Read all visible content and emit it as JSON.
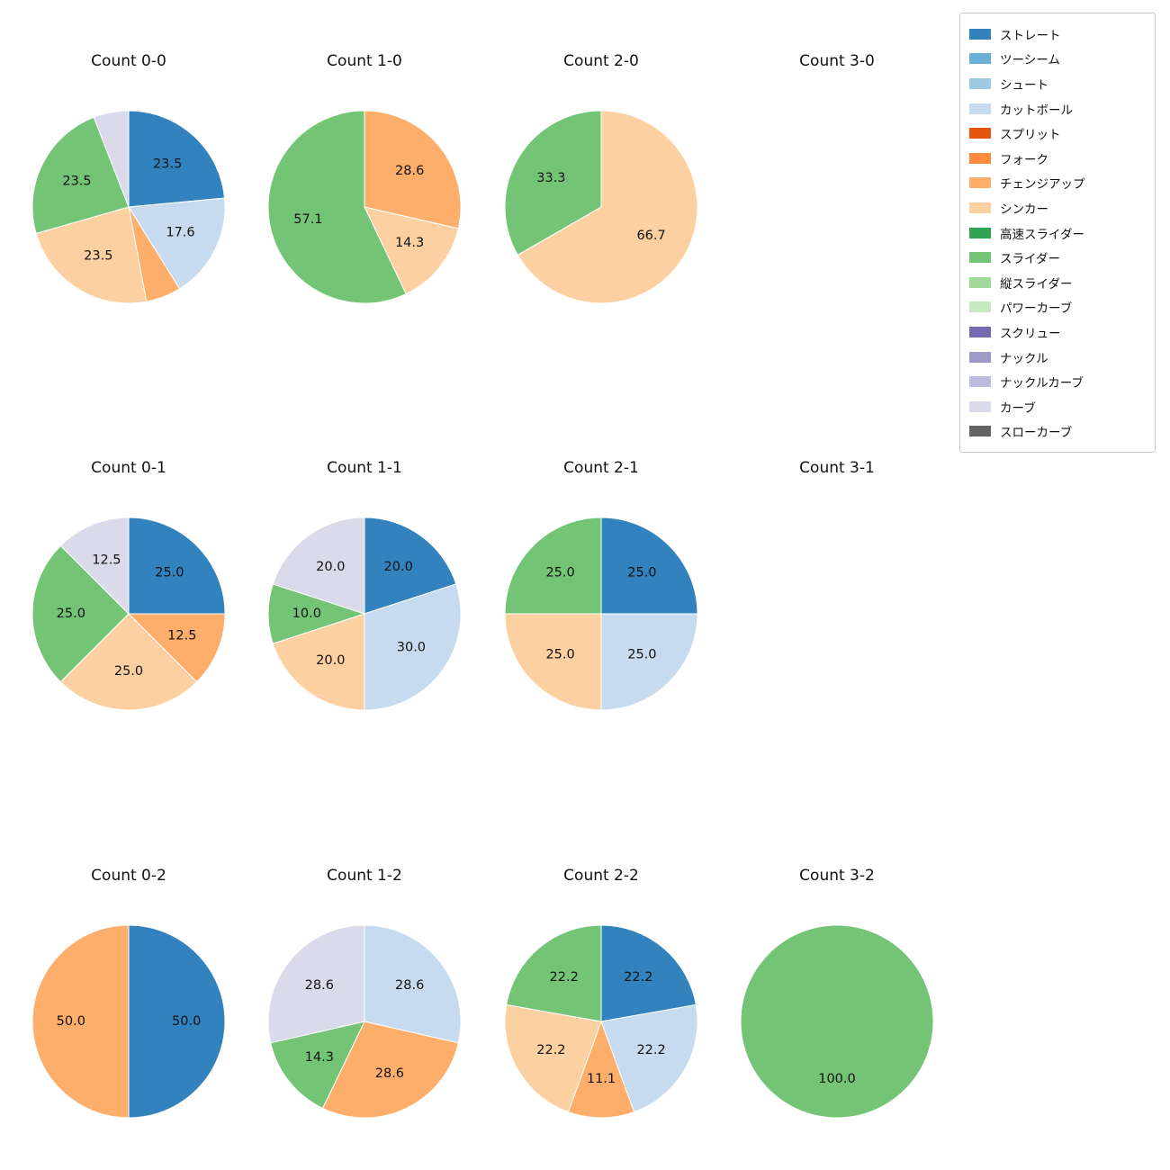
{
  "figure": {
    "background": "#ffffff",
    "text_color": "#111111"
  },
  "palette": {
    "ストレート": "#3182bd",
    "ツーシーム": "#6baed6",
    "シュート": "#9ecae1",
    "カットボール": "#c6dbef",
    "スプリット": "#e6550d",
    "フォーク": "#fd8d3c",
    "チェンジアップ": "#fdae6b",
    "シンカー": "#fdd0a2",
    "高速スライダー": "#31a354",
    "スライダー": "#74c476",
    "縦スライダー": "#a1d99b",
    "パワーカーブ": "#c7e9c0",
    "スクリュー": "#756bb1",
    "ナックル": "#9e9ac8",
    "ナックルカーブ": "#bcbddc",
    "カーブ": "#dadaeb",
    "スローカーブ": "#636363"
  },
  "legend": {
    "position": "top-right",
    "items": [
      "ストレート",
      "ツーシーム",
      "シュート",
      "カットボール",
      "スプリット",
      "フォーク",
      "チェンジアップ",
      "シンカー",
      "高速スライダー",
      "スライダー",
      "縦スライダー",
      "パワーカーブ",
      "スクリュー",
      "ナックル",
      "ナックルカーブ",
      "カーブ",
      "スローカーブ"
    ]
  },
  "pie_style": {
    "start_angle": 90,
    "direction": "clockwise",
    "label_distance": 0.6
  },
  "chart_data": [
    {
      "type": "pie",
      "title": "Count 0-0",
      "slices": [
        {
          "pitch": "ストレート",
          "value": 23.5,
          "labeled": true
        },
        {
          "pitch": "カットボール",
          "value": 17.6,
          "labeled": true
        },
        {
          "pitch": "チェンジアップ",
          "value": 5.9,
          "labeled": false
        },
        {
          "pitch": "シンカー",
          "value": 23.5,
          "labeled": true
        },
        {
          "pitch": "スライダー",
          "value": 23.5,
          "labeled": true
        },
        {
          "pitch": "カーブ",
          "value": 5.9,
          "labeled": false
        }
      ]
    },
    {
      "type": "pie",
      "title": "Count 1-0",
      "slices": [
        {
          "pitch": "チェンジアップ",
          "value": 28.6,
          "labeled": true
        },
        {
          "pitch": "シンカー",
          "value": 14.3,
          "labeled": true
        },
        {
          "pitch": "スライダー",
          "value": 57.1,
          "labeled": true
        }
      ]
    },
    {
      "type": "pie",
      "title": "Count 2-0",
      "slices": [
        {
          "pitch": "シンカー",
          "value": 66.7,
          "labeled": true
        },
        {
          "pitch": "スライダー",
          "value": 33.3,
          "labeled": true
        }
      ]
    },
    {
      "type": "pie",
      "title": "Count 3-0",
      "slices": []
    },
    {
      "type": "pie",
      "title": "Count 0-1",
      "slices": [
        {
          "pitch": "ストレート",
          "value": 25.0,
          "labeled": true
        },
        {
          "pitch": "チェンジアップ",
          "value": 12.5,
          "labeled": true
        },
        {
          "pitch": "シンカー",
          "value": 25.0,
          "labeled": true
        },
        {
          "pitch": "スライダー",
          "value": 25.0,
          "labeled": true
        },
        {
          "pitch": "カーブ",
          "value": 12.5,
          "labeled": true
        }
      ]
    },
    {
      "type": "pie",
      "title": "Count 1-1",
      "slices": [
        {
          "pitch": "ストレート",
          "value": 20.0,
          "labeled": true
        },
        {
          "pitch": "カットボール",
          "value": 30.0,
          "labeled": true
        },
        {
          "pitch": "シンカー",
          "value": 20.0,
          "labeled": true
        },
        {
          "pitch": "スライダー",
          "value": 10.0,
          "labeled": true
        },
        {
          "pitch": "カーブ",
          "value": 20.0,
          "labeled": true
        }
      ]
    },
    {
      "type": "pie",
      "title": "Count 2-1",
      "slices": [
        {
          "pitch": "ストレート",
          "value": 25.0,
          "labeled": true
        },
        {
          "pitch": "カットボール",
          "value": 25.0,
          "labeled": true
        },
        {
          "pitch": "シンカー",
          "value": 25.0,
          "labeled": true
        },
        {
          "pitch": "スライダー",
          "value": 25.0,
          "labeled": true
        }
      ]
    },
    {
      "type": "pie",
      "title": "Count 3-1",
      "slices": []
    },
    {
      "type": "pie",
      "title": "Count 0-2",
      "slices": [
        {
          "pitch": "ストレート",
          "value": 50.0,
          "labeled": true
        },
        {
          "pitch": "チェンジアップ",
          "value": 50.0,
          "labeled": true
        }
      ]
    },
    {
      "type": "pie",
      "title": "Count 1-2",
      "slices": [
        {
          "pitch": "カットボール",
          "value": 28.6,
          "labeled": true
        },
        {
          "pitch": "チェンジアップ",
          "value": 28.6,
          "labeled": true
        },
        {
          "pitch": "スライダー",
          "value": 14.3,
          "labeled": true
        },
        {
          "pitch": "カーブ",
          "value": 28.6,
          "labeled": true
        }
      ]
    },
    {
      "type": "pie",
      "title": "Count 2-2",
      "slices": [
        {
          "pitch": "ストレート",
          "value": 22.2,
          "labeled": true
        },
        {
          "pitch": "カットボール",
          "value": 22.2,
          "labeled": true
        },
        {
          "pitch": "チェンジアップ",
          "value": 11.1,
          "labeled": true
        },
        {
          "pitch": "シンカー",
          "value": 22.2,
          "labeled": true
        },
        {
          "pitch": "スライダー",
          "value": 22.2,
          "labeled": true
        }
      ]
    },
    {
      "type": "pie",
      "title": "Count 3-2",
      "slices": [
        {
          "pitch": "スライダー",
          "value": 100.0,
          "labeled": true
        }
      ]
    }
  ]
}
